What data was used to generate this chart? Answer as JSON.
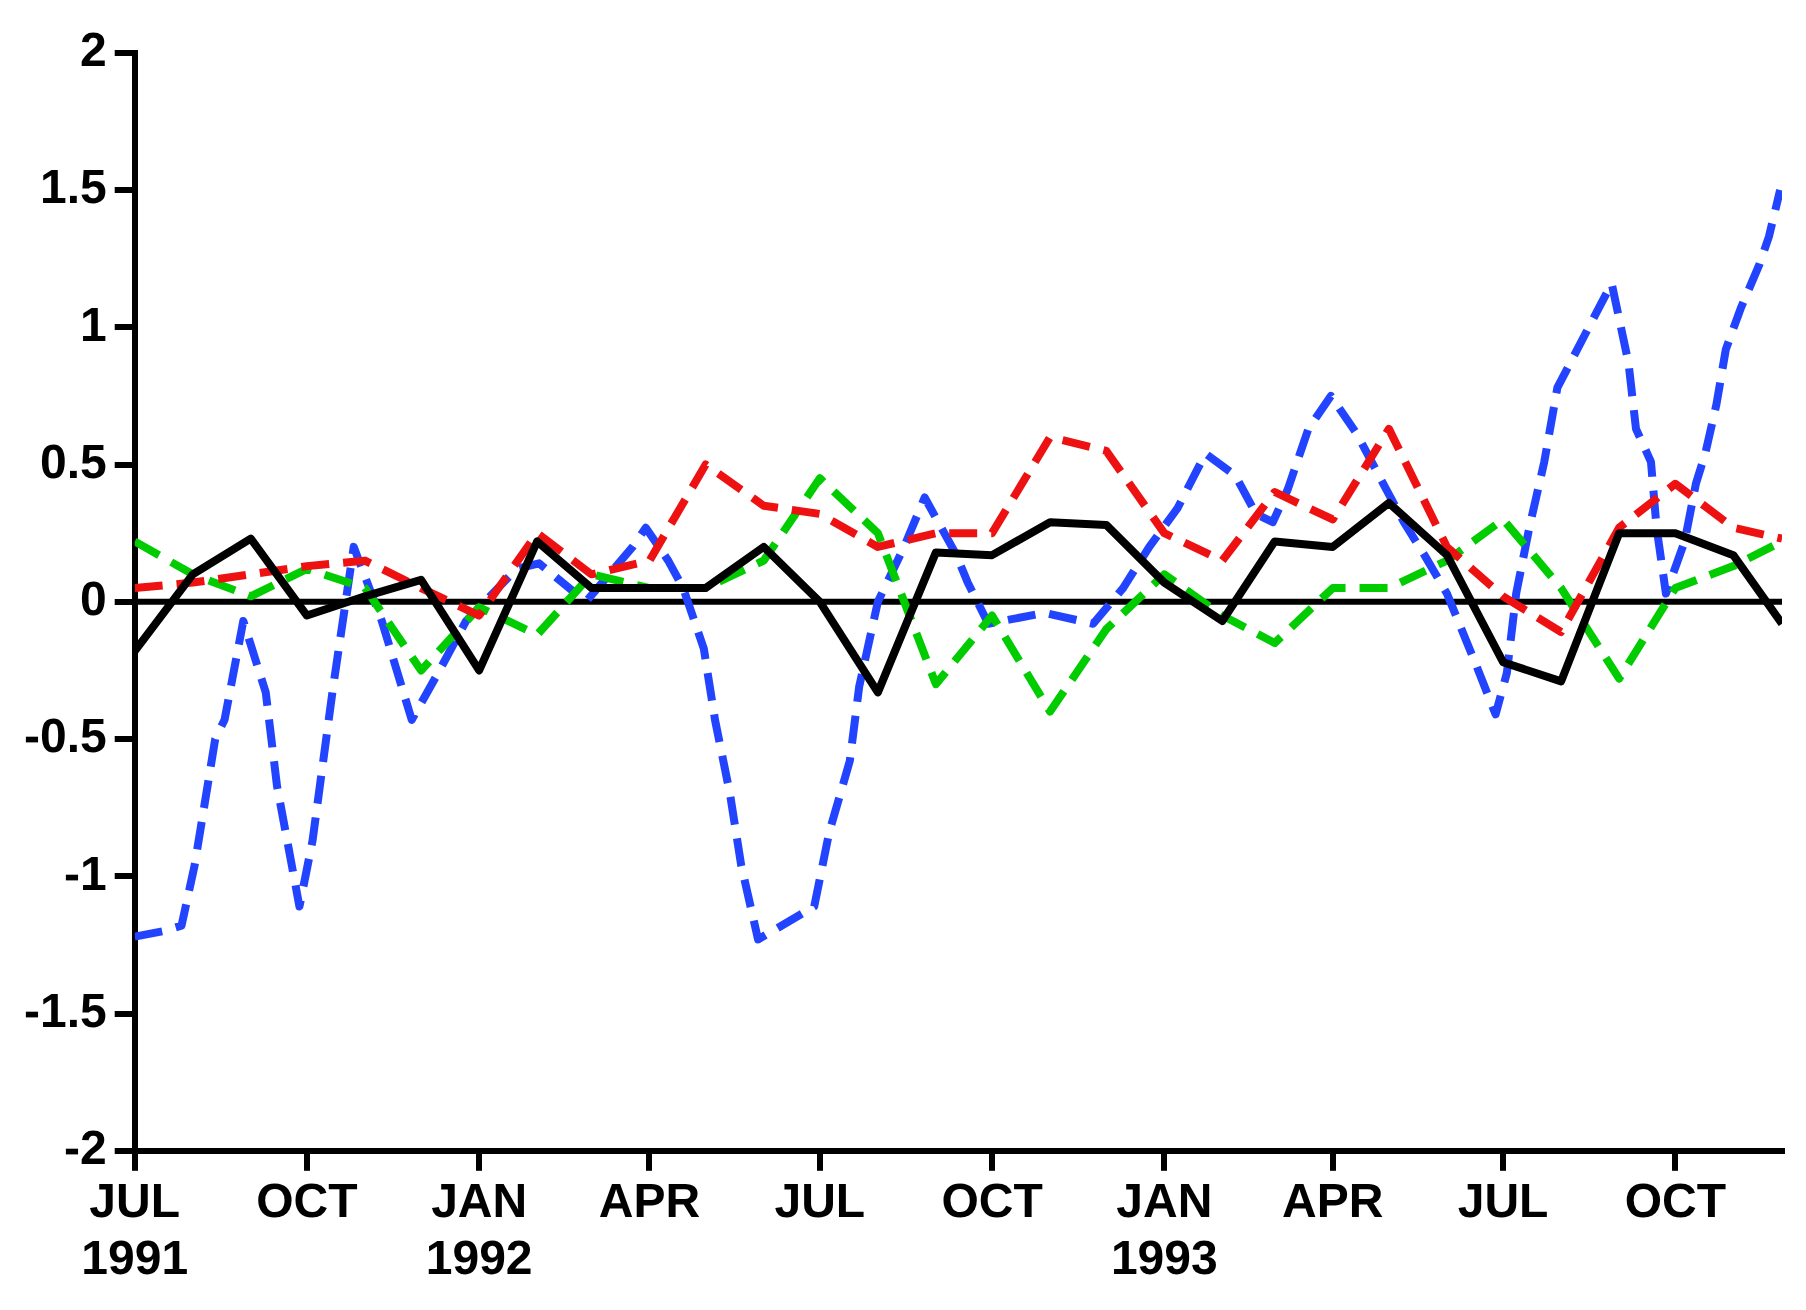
{
  "chart_data": {
    "type": "line",
    "xlim": [
      "1991-07-01",
      "1993-11-27"
    ],
    "xticks": [
      {
        "value": "1991-07",
        "label": "JUL\n1991"
      },
      {
        "value": "1991-10",
        "label": "OCT"
      },
      {
        "value": "1992-01",
        "label": "JAN\n1992"
      },
      {
        "value": "1992-04",
        "label": "APR"
      },
      {
        "value": "1992-07",
        "label": "JUL"
      },
      {
        "value": "1992-10",
        "label": "OCT"
      },
      {
        "value": "1993-01",
        "label": "JAN\n1993"
      },
      {
        "value": "1993-04",
        "label": "APR"
      },
      {
        "value": "1993-07",
        "label": "JUL"
      },
      {
        "value": "1993-10",
        "label": "OCT"
      }
    ],
    "ylim": [
      -2,
      2
    ],
    "yticks": [
      -2,
      -1.5,
      -1,
      -0.5,
      0,
      0.5,
      1,
      1.5,
      2
    ],
    "grid": false,
    "legend": false,
    "marker": "none",
    "ref_lines": [
      {
        "axis": "y",
        "value": 0,
        "color": "#000000"
      }
    ],
    "series": [
      {
        "color": "#000000",
        "line_style": "solid",
        "x": [
          "1991-07",
          "1991-08",
          "1991-09",
          "1991-10",
          "1991-11",
          "1991-12",
          "1992-01",
          "1992-02",
          "1992-03",
          "1992-04",
          "1992-05",
          "1992-06",
          "1992-07",
          "1992-08",
          "1992-09",
          "1992-10",
          "1992-11",
          "1992-12",
          "1993-01",
          "1993-02",
          "1993-03",
          "1993-04",
          "1993-05",
          "1993-06",
          "1993-07",
          "1993-08",
          "1993-09",
          "1993-10",
          "1993-11",
          "1993-11-27"
        ],
        "values": [
          -0.18,
          0.1,
          0.23,
          -0.05,
          0.02,
          0.08,
          -0.25,
          0.22,
          0.05,
          0.05,
          0.05,
          0.2,
          0,
          -0.33,
          0.18,
          0.17,
          0.29,
          0.28,
          0.07,
          -0.07,
          0.22,
          0.2,
          0.36,
          0.17,
          -0.22,
          -0.29,
          0.25,
          0.25,
          0.17,
          -0.08
        ]
      },
      {
        "color": "#ee1111",
        "line_style": "dashed",
        "x": [
          "1991-07",
          "1991-08",
          "1991-09",
          "1991-10",
          "1991-11",
          "1991-12",
          "1992-01",
          "1992-02",
          "1992-03",
          "1992-04",
          "1992-05",
          "1992-06",
          "1992-07",
          "1992-08",
          "1992-09",
          "1992-10",
          "1992-11",
          "1992-12",
          "1993-01",
          "1993-02",
          "1993-03",
          "1993-04",
          "1993-05",
          "1993-06",
          "1993-07",
          "1993-08",
          "1993-09",
          "1993-10",
          "1993-11",
          "1993-11-27"
        ],
        "values": [
          0.05,
          0.07,
          0.1,
          0.13,
          0.15,
          0.05,
          -0.05,
          0.25,
          0.1,
          0.15,
          0.5,
          0.35,
          0.32,
          0.2,
          0.25,
          0.25,
          0.6,
          0.55,
          0.25,
          0.15,
          0.4,
          0.3,
          0.63,
          0.2,
          0.02,
          -0.11,
          0.27,
          0.43,
          0.27,
          0.23
        ]
      },
      {
        "color": "#00cc00",
        "line_style": "dashed",
        "x": [
          "1991-07",
          "1991-08",
          "1991-09",
          "1991-10",
          "1991-11",
          "1991-12",
          "1992-01",
          "1992-02",
          "1992-03",
          "1992-04",
          "1992-05",
          "1992-06",
          "1992-07",
          "1992-08",
          "1992-09",
          "1992-10",
          "1992-11",
          "1992-12",
          "1993-01",
          "1993-02",
          "1993-03",
          "1993-04",
          "1993-05",
          "1993-06",
          "1993-07",
          "1993-08",
          "1993-09",
          "1993-10",
          "1993-11",
          "1993-11-27"
        ],
        "values": [
          0.22,
          0.1,
          0.02,
          0.12,
          0.05,
          -0.25,
          -0.02,
          -0.12,
          0.1,
          0.05,
          0.05,
          0.15,
          0.45,
          0.25,
          -0.3,
          -0.05,
          -0.4,
          -0.1,
          0.1,
          -0.05,
          -0.15,
          0.05,
          0.05,
          0.15,
          0.3,
          0.05,
          -0.28,
          0.05,
          0.13,
          0.22
        ]
      },
      {
        "color": "#2244ff",
        "line_style": "dashed",
        "x": [
          "1991-07-01",
          "1991-07-16",
          "1991-07-26",
          "1991-08-02",
          "1991-08-13",
          "1991-08-18",
          "1991-08-28",
          "1991-09-09",
          "1991-09-15",
          "1991-09-27",
          "1991-10-04",
          "1991-10-15",
          "1991-10-26",
          "1991-11-10",
          "1991-11-26",
          "1991-12-10",
          "1991-12-25",
          "1992-01-21",
          "1992-02-02",
          "1992-02-27",
          "1992-03-23",
          "1992-03-30",
          "1992-04-11",
          "1992-04-19",
          "1992-04-30",
          "1992-05-06",
          "1992-05-14",
          "1992-05-20",
          "1992-05-29",
          "1992-06-28",
          "1992-07-06",
          "1992-07-17",
          "1992-07-22",
          "1992-08-01",
          "1992-08-15",
          "1992-08-26",
          "1992-09-12",
          "1992-09-18",
          "1992-09-29",
          "1992-10-29",
          "1992-11-24",
          "1992-12-10",
          "1992-12-24",
          "1993-01-08",
          "1993-01-23",
          "1993-02-08",
          "1993-02-19",
          "1993-02-28",
          "1993-03-08",
          "1993-03-19",
          "1993-03-31",
          "1993-04-14",
          "1993-04-28",
          "1993-05-09",
          "1993-05-20",
          "1993-06-01",
          "1993-06-07",
          "1993-06-16",
          "1993-06-27",
          "1993-07-03",
          "1993-07-08",
          "1993-07-15",
          "1993-07-23",
          "1993-07-30",
          "1993-08-15",
          "1993-08-28",
          "1993-09-06",
          "1993-09-10",
          "1993-09-18",
          "1993-09-21",
          "1993-09-26",
          "1993-10-06",
          "1993-10-12",
          "1993-10-17",
          "1993-10-23",
          "1993-10-28",
          "1993-11-05",
          "1993-11-15",
          "1993-11-20",
          "1993-11-26"
        ],
        "values": [
          -1.22,
          -1.2,
          -1.18,
          -0.96,
          -0.5,
          -0.43,
          -0.07,
          -0.33,
          -0.67,
          -1.11,
          -0.87,
          -0.31,
          0.2,
          -0.07,
          -0.43,
          -0.26,
          -0.07,
          0.12,
          0.14,
          0,
          0.2,
          0.27,
          0.15,
          0.05,
          -0.17,
          -0.43,
          -0.7,
          -0.96,
          -1.23,
          -1.11,
          -0.84,
          -0.58,
          -0.31,
          0,
          0.2,
          0.38,
          0.17,
          0.07,
          -0.08,
          -0.04,
          -0.08,
          0.05,
          0.2,
          0.34,
          0.54,
          0.46,
          0.32,
          0.29,
          0.41,
          0.63,
          0.75,
          0.61,
          0.43,
          0.29,
          0.17,
          0.03,
          -0.07,
          -0.22,
          -0.41,
          -0.26,
          0.03,
          0.27,
          0.51,
          0.78,
          0.99,
          1.16,
          0.87,
          0.63,
          0.51,
          0.27,
          0.03,
          0.22,
          0.43,
          0.54,
          0.72,
          0.92,
          1.07,
          1.23,
          1.33,
          1.5
        ]
      }
    ]
  }
}
